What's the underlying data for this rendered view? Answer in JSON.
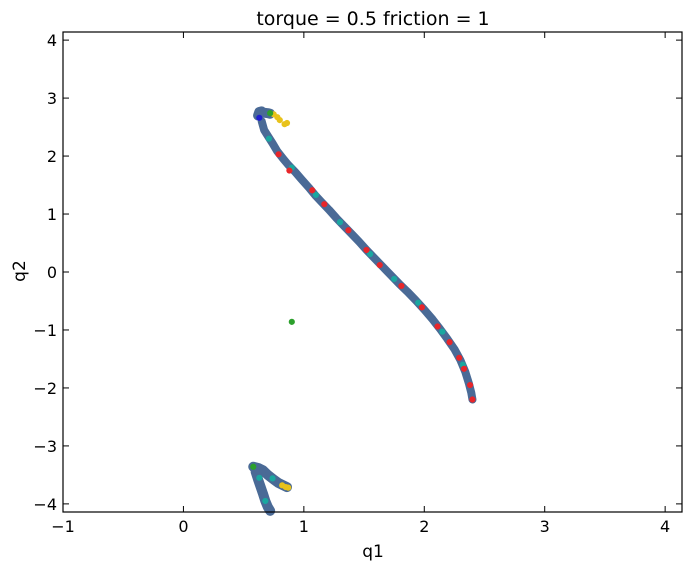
{
  "chart_data": {
    "type": "scatter",
    "title": "torque = 0.5   friction = 1",
    "xlabel": "q1",
    "ylabel": "q2",
    "xlim": [
      -1,
      4.14
    ],
    "ylim": [
      -4.14,
      4.14
    ],
    "xticks": [
      -1,
      0,
      1,
      2,
      3,
      4
    ],
    "yticks": [
      -4,
      -3,
      -2,
      -1,
      0,
      1,
      2,
      3,
      4
    ],
    "xtick_labels": [
      "−1",
      "0",
      "1",
      "2",
      "3",
      "4"
    ],
    "ytick_labels": [
      "−4",
      "−3",
      "−2",
      "−1",
      "0",
      "1",
      "2",
      "3",
      "4"
    ],
    "grid": false,
    "colors": {
      "main": "#4a6a96",
      "teal": "#1aa7a0",
      "red": "#e8262a",
      "yellow": "#e8c21b",
      "green": "#2ca02c",
      "blue": "#1f1fd0"
    },
    "series": [
      {
        "color_key": "main",
        "points": [
          [
            0.62,
            2.7
          ],
          [
            0.63,
            2.76
          ],
          [
            0.65,
            2.77
          ],
          [
            0.66,
            2.75
          ],
          [
            0.7,
            2.74
          ],
          [
            0.72,
            2.73
          ],
          [
            0.65,
            2.6
          ],
          [
            0.67,
            2.45
          ],
          [
            0.7,
            2.35
          ],
          [
            0.74,
            2.22
          ],
          [
            0.78,
            2.08
          ],
          [
            0.83,
            1.95
          ],
          [
            0.87,
            1.85
          ],
          [
            0.93,
            1.72
          ],
          [
            0.98,
            1.6
          ],
          [
            1.04,
            1.46
          ],
          [
            1.1,
            1.31
          ],
          [
            1.15,
            1.2
          ],
          [
            1.21,
            1.07
          ],
          [
            1.27,
            0.93
          ],
          [
            1.33,
            0.8
          ],
          [
            1.4,
            0.65
          ],
          [
            1.46,
            0.52
          ],
          [
            1.52,
            0.38
          ],
          [
            1.59,
            0.23
          ],
          [
            1.66,
            0.08
          ],
          [
            1.72,
            -0.05
          ],
          [
            1.79,
            -0.2
          ],
          [
            1.86,
            -0.34
          ],
          [
            1.93,
            -0.49
          ],
          [
            2.0,
            -0.65
          ],
          [
            2.07,
            -0.82
          ],
          [
            2.13,
            -0.98
          ],
          [
            2.19,
            -1.15
          ],
          [
            2.25,
            -1.33
          ],
          [
            2.3,
            -1.52
          ],
          [
            2.34,
            -1.72
          ],
          [
            2.37,
            -1.92
          ],
          [
            2.39,
            -2.08
          ],
          [
            2.4,
            -2.2
          ],
          [
            0.58,
            -3.36
          ],
          [
            0.62,
            -3.38
          ],
          [
            0.66,
            -3.42
          ],
          [
            0.7,
            -3.5
          ],
          [
            0.75,
            -3.58
          ],
          [
            0.79,
            -3.64
          ],
          [
            0.83,
            -3.68
          ],
          [
            0.86,
            -3.71
          ],
          [
            0.6,
            -3.45
          ],
          [
            0.62,
            -3.58
          ],
          [
            0.64,
            -3.7
          ],
          [
            0.66,
            -3.82
          ],
          [
            0.68,
            -3.95
          ],
          [
            0.7,
            -4.05
          ],
          [
            0.72,
            -4.12
          ]
        ]
      },
      {
        "color_key": "teal",
        "points": [
          [
            0.71,
            2.3
          ],
          [
            0.9,
            1.8
          ],
          [
            1.1,
            1.33
          ],
          [
            1.3,
            0.86
          ],
          [
            1.55,
            0.31
          ],
          [
            1.75,
            -0.12
          ],
          [
            1.95,
            -0.53
          ],
          [
            2.15,
            -1.03
          ],
          [
            2.32,
            -1.6
          ],
          [
            0.63,
            -3.55
          ],
          [
            0.68,
            -3.95
          ],
          [
            0.74,
            -3.56
          ]
        ]
      },
      {
        "color_key": "red",
        "points": [
          [
            0.79,
            2.03
          ],
          [
            0.88,
            1.75
          ],
          [
            1.07,
            1.41
          ],
          [
            1.17,
            1.17
          ],
          [
            1.37,
            0.72
          ],
          [
            1.52,
            0.38
          ],
          [
            1.63,
            0.12
          ],
          [
            1.81,
            -0.24
          ],
          [
            1.98,
            -0.61
          ],
          [
            2.11,
            -0.94
          ],
          [
            2.21,
            -1.21
          ],
          [
            2.29,
            -1.48
          ],
          [
            2.33,
            -1.67
          ],
          [
            2.38,
            -1.95
          ],
          [
            2.4,
            -2.2
          ]
        ]
      },
      {
        "color_key": "yellow",
        "points": [
          [
            0.75,
            2.72
          ],
          [
            0.8,
            2.62
          ],
          [
            0.84,
            2.55
          ],
          [
            0.86,
            2.57
          ],
          [
            0.78,
            2.67
          ],
          [
            0.82,
            -3.68
          ],
          [
            0.85,
            -3.71
          ],
          [
            0.87,
            -3.72
          ]
        ]
      },
      {
        "color_key": "green",
        "points": [
          [
            0.9,
            -0.86
          ],
          [
            0.58,
            -3.36
          ],
          [
            0.72,
            2.74
          ]
        ]
      },
      {
        "color_key": "blue",
        "points": [
          [
            0.63,
            2.66
          ]
        ]
      }
    ]
  }
}
